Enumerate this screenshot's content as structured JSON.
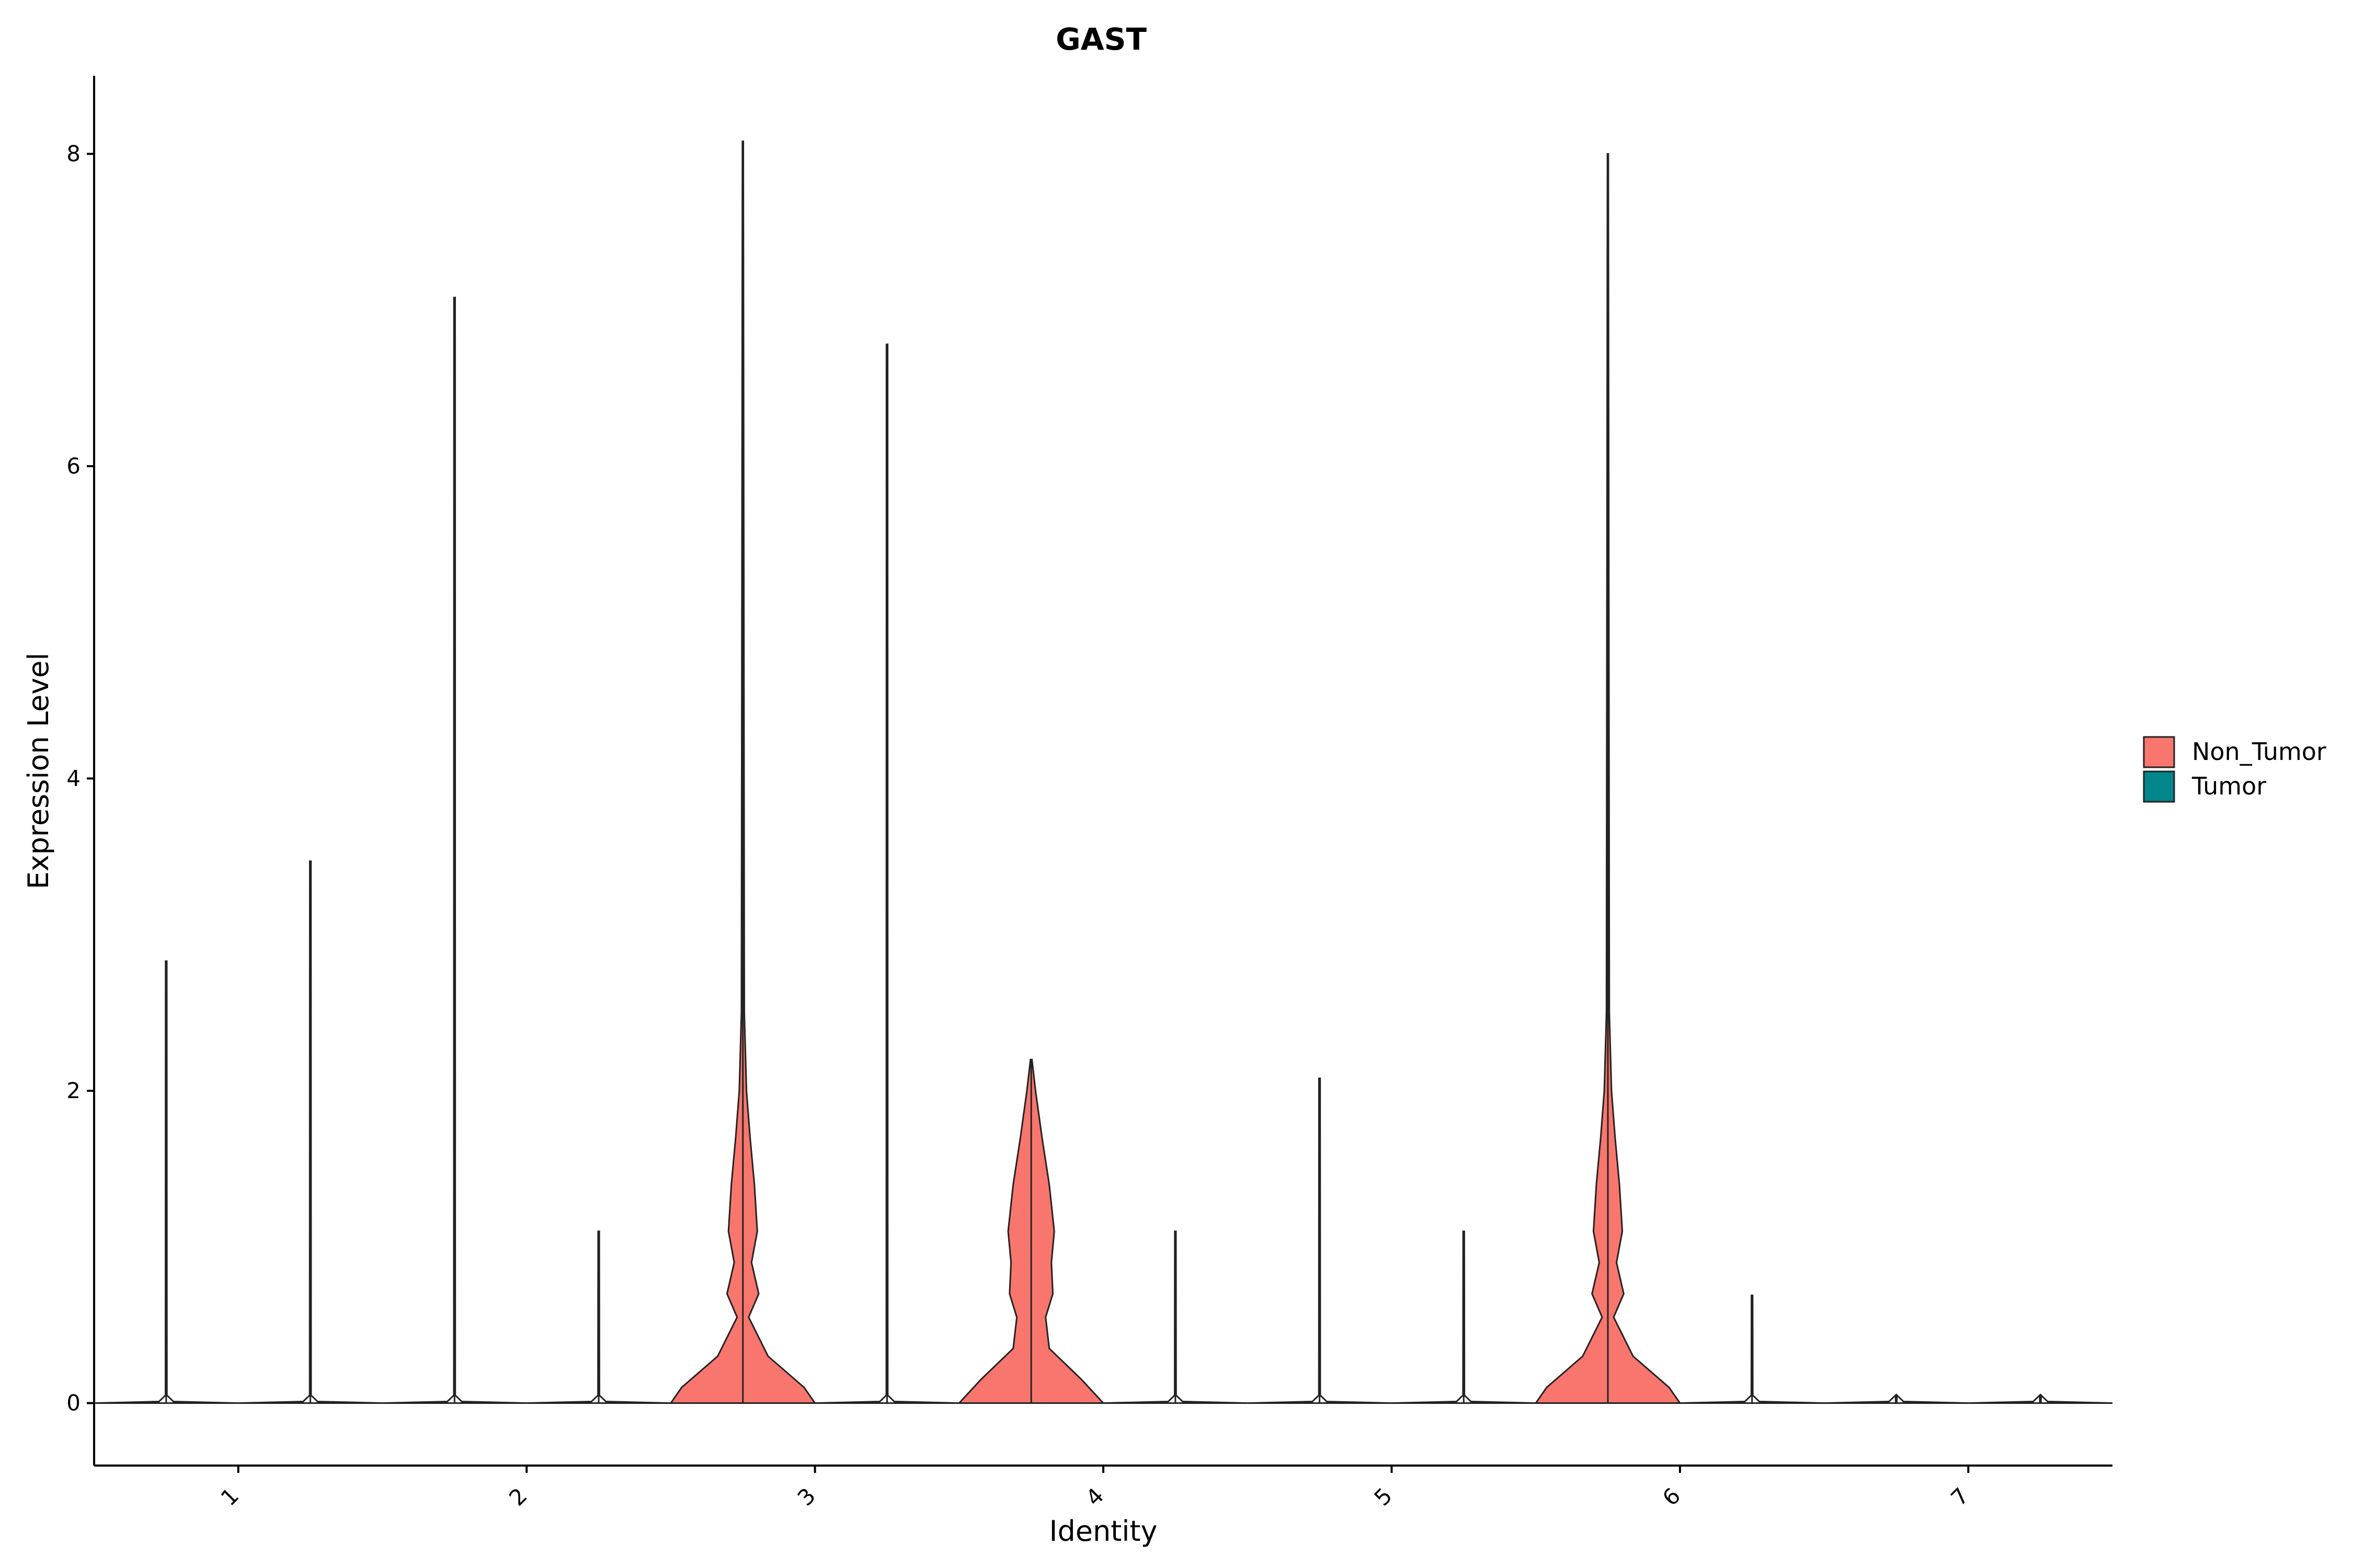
{
  "chart_data": {
    "type": "violin",
    "title": "GAST",
    "xlabel": "Identity",
    "ylabel": "Expression Level",
    "ylim": [
      -0.4,
      8.5
    ],
    "yticks": [
      0,
      2,
      4,
      6,
      8
    ],
    "categories": [
      "1",
      "2",
      "3",
      "4",
      "5",
      "6",
      "7"
    ],
    "legend": {
      "position": "right",
      "entries": [
        {
          "name": "Non_Tumor",
          "color": "#F8766D"
        },
        {
          "name": "Tumor",
          "color": "#00868B"
        }
      ]
    },
    "series": [
      {
        "name": "Non_Tumor",
        "max_values": [
          2.83,
          7.08,
          8.08,
          2.2,
          2.08,
          8.0,
          0.0
        ]
      },
      {
        "name": "Tumor",
        "max_values": [
          3.47,
          1.1,
          6.78,
          1.1,
          1.1,
          0.69,
          0.0
        ]
      }
    ],
    "grid": false
  }
}
